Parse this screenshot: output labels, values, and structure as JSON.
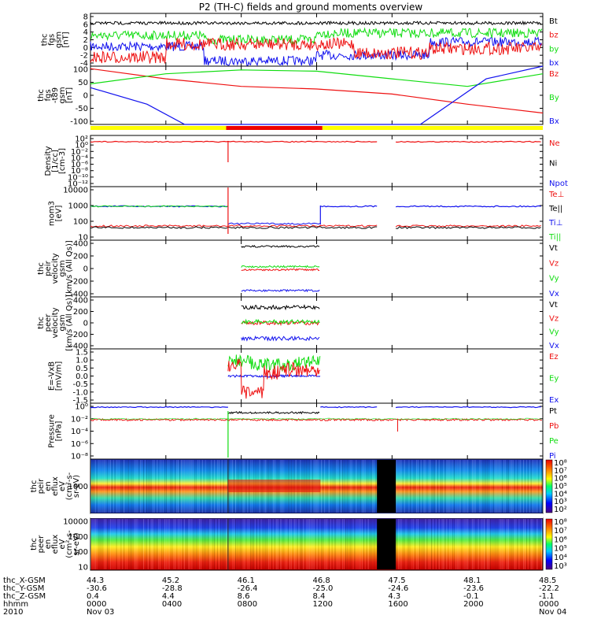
{
  "title": "P2 (TH-C) fields and ground moments overview",
  "colors": {
    "black": "#000000",
    "red": "#ee1111",
    "green": "#11dd11",
    "blue": "#1111ee",
    "yellow": "#ffff00",
    "darkred": "#dd0000",
    "gridblack": "#000000"
  },
  "panels": [
    {
      "id": "fgs",
      "ylabel": [
        "thc",
        "fgs",
        "gsm",
        "[nT]"
      ],
      "yticks": [
        "8",
        "6",
        "4",
        "2",
        "0",
        "-2",
        "-4"
      ],
      "legend": [
        {
          "text": "Bt",
          "color": "#000000"
        },
        {
          "text": "bz",
          "color": "#ee1111"
        },
        {
          "text": "by",
          "color": "#11dd11"
        },
        {
          "text": "bx",
          "color": "#1111ee"
        }
      ]
    },
    {
      "id": "t89",
      "ylabel": [
        "thc",
        "fgs",
        "-t89",
        "gsm",
        "[nT]"
      ],
      "yticks": [
        "100",
        "50",
        "0",
        "-50",
        "-100"
      ],
      "legend": [
        {
          "text": "Bz",
          "color": "#ee1111"
        },
        {
          "text": "By",
          "color": "#11dd11"
        },
        {
          "text": "Bx",
          "color": "#1111ee"
        }
      ]
    },
    {
      "id": "density",
      "ylabel": [
        "Density",
        "[1/cc]",
        "[cm-3]"
      ],
      "yticks": [
        "10²",
        "10⁰",
        "10⁻²",
        "10⁻⁴",
        "10⁻⁶",
        "10⁻⁸",
        "10⁻¹⁰",
        "10⁻¹²"
      ],
      "legend": [
        {
          "text": "Ne",
          "color": "#ee1111"
        },
        {
          "text": "Ni",
          "color": "#000000"
        },
        {
          "text": "Npot",
          "color": "#1111ee"
        }
      ]
    },
    {
      "id": "temp",
      "ylabel": [
        "mom3",
        "[eV]"
      ],
      "yticks": [
        "10000",
        "1000",
        "100",
        "10"
      ],
      "legend": [
        {
          "text": "Te⊥",
          "color": "#ee1111"
        },
        {
          "text": "Te||",
          "color": "#000000"
        },
        {
          "text": "Ti⊥",
          "color": "#1111ee"
        },
        {
          "text": "Ti||",
          "color": "#11dd11"
        }
      ]
    },
    {
      "id": "peir_v",
      "ylabel": [
        "thc",
        "peir",
        "velocity",
        "gsm",
        "[km/s (All Qs)]"
      ],
      "yticks": [
        "400",
        "200",
        "0",
        "-200",
        "-400"
      ],
      "legend": [
        {
          "text": "Vt",
          "color": "#000000"
        },
        {
          "text": "Vz",
          "color": "#ee1111"
        },
        {
          "text": "Vy",
          "color": "#11dd11"
        },
        {
          "text": "Vx",
          "color": "#1111ee"
        }
      ]
    },
    {
      "id": "peer_v",
      "ylabel": [
        "thc",
        "peer",
        "velocity",
        "gsm",
        "[km/s (All Qs)]"
      ],
      "yticks": [
        "400",
        "200",
        "0",
        "-200",
        "-400"
      ],
      "legend": [
        {
          "text": "Vt",
          "color": "#000000"
        },
        {
          "text": "Vz",
          "color": "#ee1111"
        },
        {
          "text": "Vy",
          "color": "#11dd11"
        },
        {
          "text": "Vx",
          "color": "#1111ee"
        }
      ]
    },
    {
      "id": "efield",
      "ylabel": [
        "E=-VxB",
        "[mV/m]"
      ],
      "yticks": [
        "1.5",
        "1.0",
        "0.5",
        "0.0",
        "-0.5",
        "-1.0",
        "-1.5"
      ],
      "legend": [
        {
          "text": "Ez",
          "color": "#ee1111"
        },
        {
          "text": "Ey",
          "color": "#11dd11"
        },
        {
          "text": "Ex",
          "color": "#1111ee"
        }
      ]
    },
    {
      "id": "pressure",
      "ylabel": [
        "Pressure",
        "[nPa]"
      ],
      "yticks": [
        "10⁰",
        "10⁻²",
        "10⁻⁴",
        "10⁻⁶",
        "10⁻⁸"
      ],
      "legend": [
        {
          "text": "Pt",
          "color": "#000000"
        },
        {
          "text": "Pb",
          "color": "#ee1111"
        },
        {
          "text": "Pe",
          "color": "#11dd11"
        },
        {
          "text": "Pi",
          "color": "#1111ee"
        }
      ]
    },
    {
      "id": "peir_spec",
      "ylabel": [
        "thc",
        "peir",
        "en",
        "eflux",
        "eV",
        "(cm²-s-",
        "sr-eV)"
      ],
      "yticks": [
        "1000"
      ],
      "cbar": [
        "10⁸",
        "10⁷",
        "10⁶",
        "10⁵",
        "10⁴",
        "10³",
        "10²"
      ]
    },
    {
      "id": "peer_spec",
      "ylabel": [
        "thc",
        "peer",
        "en",
        "eflux",
        "eV",
        "(cm²-s-",
        "sr-eV)"
      ],
      "yticks": [
        "10000",
        "1000",
        "100",
        "10"
      ],
      "cbar": [
        "10⁸",
        "10⁷",
        "10⁶",
        "10⁵",
        "10⁴",
        "10³"
      ]
    }
  ],
  "xaxis": {
    "row_labels": [
      "thc_X-GSM",
      "thc_Y-GSM",
      "thc_Z-GSM",
      "hhmm",
      "2010"
    ],
    "columns": [
      {
        "x": "44.3",
        "y": "-30.6",
        "z": "0.4",
        "hhmm": "0000",
        "date": "Nov 03"
      },
      {
        "x": "45.2",
        "y": "-28.8",
        "z": "4.4",
        "hhmm": "0400",
        "date": ""
      },
      {
        "x": "46.1",
        "y": "-26.4",
        "z": "8.6",
        "hhmm": "0800",
        "date": ""
      },
      {
        "x": "46.8",
        "y": "-25.0",
        "z": "8.4",
        "hhmm": "1200",
        "date": ""
      },
      {
        "x": "47.5",
        "y": "-24.6",
        "z": "4.3",
        "hhmm": "1600",
        "date": ""
      },
      {
        "x": "48.1",
        "y": "-23.6",
        "z": "-0.1",
        "hhmm": "2000",
        "date": ""
      },
      {
        "x": "48.5",
        "y": "-22.2",
        "z": "-1.1",
        "hhmm": "0000",
        "date": "Nov 04"
      }
    ]
  },
  "chart_data": {
    "type": "line",
    "title": "P2 (TH-C) fields and ground moments overview",
    "x_unit": "hhmm",
    "x_ticks": [
      "0000",
      "0400",
      "0800",
      "1200",
      "1600",
      "2000",
      "0000"
    ],
    "panels": [
      {
        "name": "fgs gsm [nT]",
        "ylim": [
          -4,
          8
        ],
        "series": [
          {
            "name": "Bt",
            "x": [
              0,
              4,
              8,
              12,
              16,
              20,
              24
            ],
            "values": [
              6,
              5.5,
              5,
              5.5,
              6,
              6,
              6
            ]
          },
          {
            "name": "bz",
            "x": [
              0,
              4,
              8,
              12,
              16,
              20,
              24
            ],
            "values": [
              -2,
              -2,
              2,
              2,
              -2,
              -1,
              -2
            ]
          },
          {
            "name": "by",
            "x": [
              0,
              4,
              8,
              12,
              16,
              20,
              24
            ],
            "values": [
              3,
              4,
              2,
              3,
              4,
              2,
              3
            ]
          },
          {
            "name": "bx",
            "x": [
              0,
              4,
              8,
              12,
              16,
              20,
              24
            ],
            "values": [
              0,
              -1,
              -3,
              -2,
              0,
              2,
              0
            ]
          }
        ]
      },
      {
        "name": "fgs-t89 gsm [nT]",
        "ylim": [
          -120,
          110
        ],
        "series": [
          {
            "name": "Bz",
            "x": [
              0,
              4,
              8,
              12,
              16,
              20,
              24
            ],
            "values": [
              100,
              60,
              30,
              20,
              0,
              -40,
              -75
            ]
          },
          {
            "name": "By",
            "x": [
              0,
              4,
              8,
              12,
              16,
              20,
              24
            ],
            "values": [
              40,
              80,
              95,
              90,
              60,
              30,
              80
            ]
          },
          {
            "name": "Bx",
            "x": [
              0,
              3,
              5,
              17.5,
              21,
              24
            ],
            "values": [
              25,
              -40,
              -120,
              -120,
              60,
              110
            ]
          }
        ]
      },
      {
        "name": "Density [cm-3]",
        "ylim": [
          1e-12,
          100
        ],
        "series": [
          {
            "name": "Ne",
            "x": [
              0,
              24
            ],
            "values": [
              1,
              1
            ]
          }
        ]
      },
      {
        "name": "mom3 [eV]",
        "ylim": [
          5,
          10000
        ],
        "series": [
          {
            "name": "Ti⊥",
            "x": [
              0,
              8,
              12.2,
              24
            ],
            "values": [
              500,
              500,
              20,
              600
            ]
          },
          {
            "name": "Te⊥",
            "x": [
              0,
              24
            ],
            "values": [
              20,
              20
            ]
          }
        ]
      },
      {
        "name": "peir velocity gsm [km/s]",
        "ylim": [
          -450,
          450
        ],
        "series": [
          {
            "name": "Vt",
            "x": [
              8,
              12
            ],
            "values": [
              350,
              350
            ]
          },
          {
            "name": "Vz",
            "x": [
              8,
              12
            ],
            "values": [
              -20,
              -20
            ]
          },
          {
            "name": "Vy",
            "x": [
              8,
              12
            ],
            "values": [
              30,
              30
            ]
          },
          {
            "name": "Vx",
            "x": [
              8,
              12
            ],
            "values": [
              -350,
              -350
            ]
          }
        ]
      },
      {
        "name": "peer velocity gsm [km/s]",
        "ylim": [
          -450,
          450
        ],
        "series": [
          {
            "name": "Vt",
            "x": [
              8,
              12
            ],
            "values": [
              270,
              270
            ]
          },
          {
            "name": "Vz",
            "x": [
              8,
              12
            ],
            "values": [
              0,
              0
            ]
          },
          {
            "name": "Vy",
            "x": [
              8,
              12
            ],
            "values": [
              20,
              20
            ]
          },
          {
            "name": "Vx",
            "x": [
              8,
              12
            ],
            "values": [
              -270,
              -270
            ]
          }
        ]
      },
      {
        "name": "E=-VxB [mV/m]",
        "ylim": [
          -1.6,
          1.6
        ],
        "series": [
          {
            "name": "Ez",
            "x": [
              8,
              9,
              10,
              12
            ],
            "values": [
              0.7,
              -1.3,
              0.3,
              0.6
            ]
          },
          {
            "name": "Ey",
            "x": [
              8,
              10,
              12
            ],
            "values": [
              1.0,
              0.8,
              1.2
            ]
          },
          {
            "name": "Ex",
            "x": [
              8,
              12
            ],
            "values": [
              0.0,
              0.0
            ]
          }
        ]
      },
      {
        "name": "Pressure [nPa]",
        "ylim": [
          1e-08,
          1
        ],
        "series": [
          {
            "name": "Pt",
            "x": [
              0,
              8,
              12,
              24
            ],
            "values": [
              0.1,
              0.1,
              0.1,
              0.1
            ]
          },
          {
            "name": "Pb",
            "x": [
              0,
              24
            ],
            "values": [
              0.01,
              0.01
            ]
          }
        ]
      }
    ]
  }
}
